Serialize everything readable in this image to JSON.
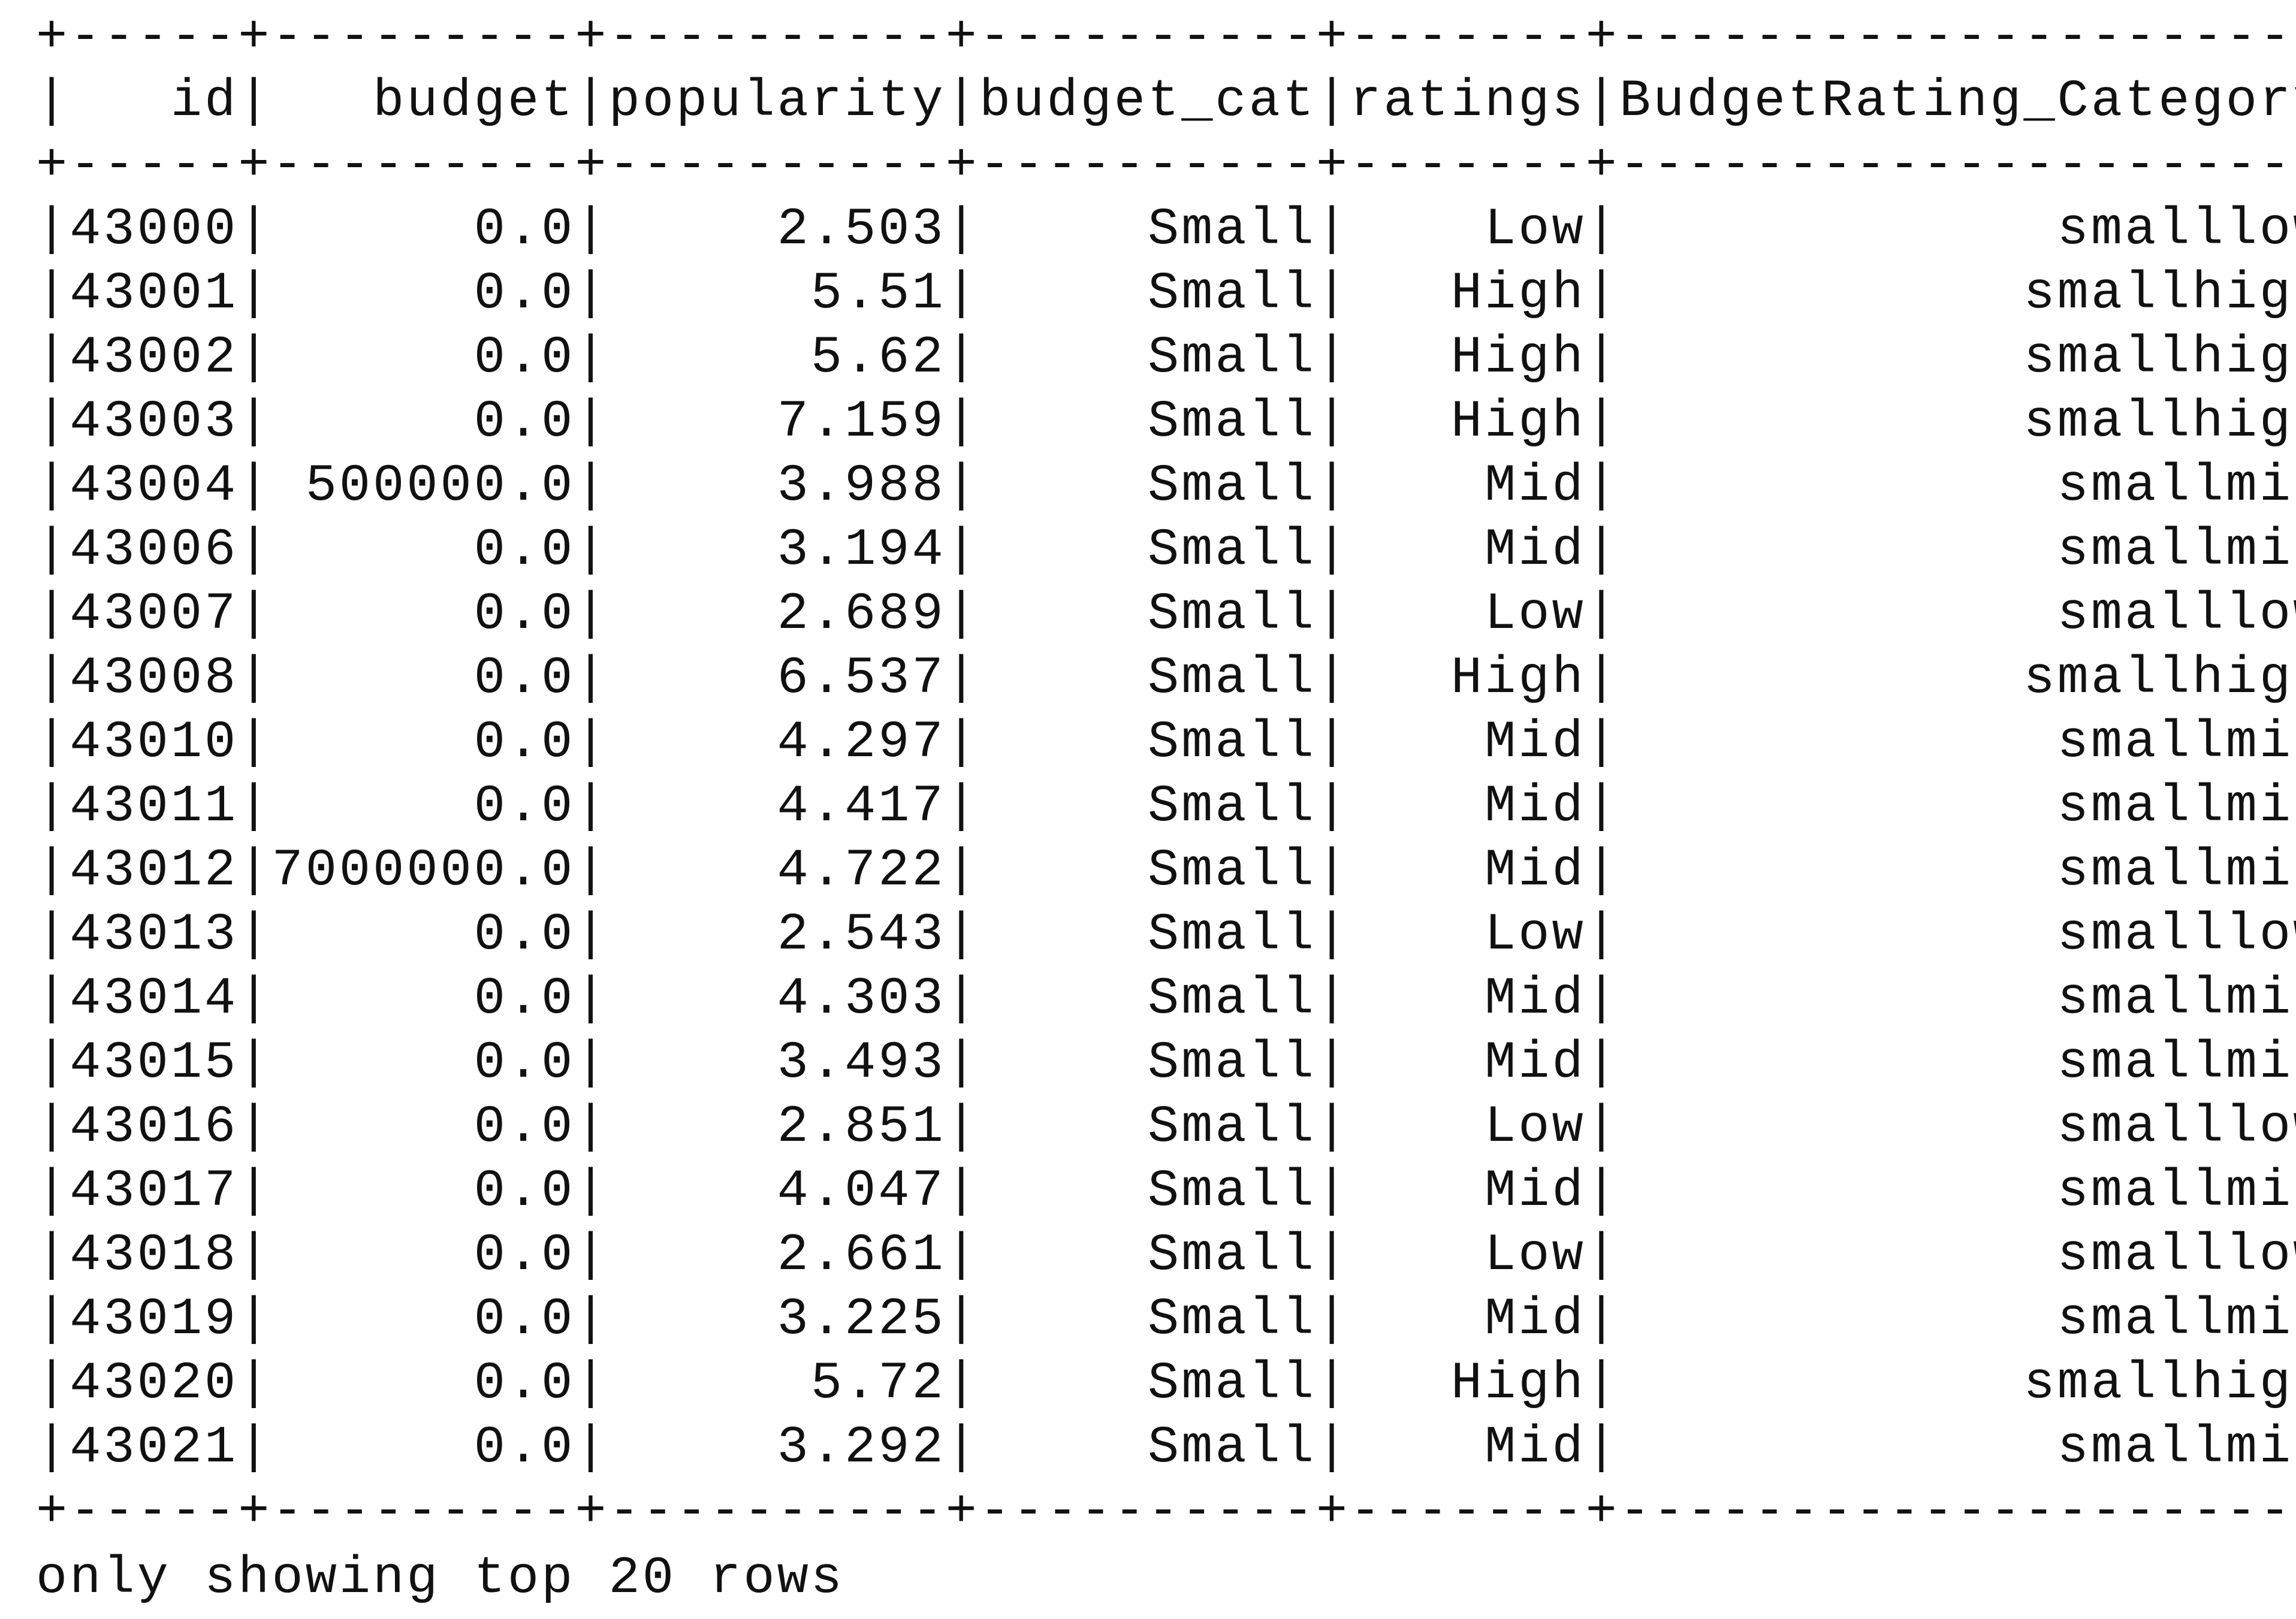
{
  "table": {
    "columns": [
      "id",
      "budget",
      "popularity",
      "budget_cat",
      "ratings",
      "BudgetRating_Category"
    ],
    "rows": [
      [
        "43000",
        "0.0",
        "2.503",
        "Small",
        "Low",
        "smalllow"
      ],
      [
        "43001",
        "0.0",
        "5.51",
        "Small",
        "High",
        "smallhigh"
      ],
      [
        "43002",
        "0.0",
        "5.62",
        "Small",
        "High",
        "smallhigh"
      ],
      [
        "43003",
        "0.0",
        "7.159",
        "Small",
        "High",
        "smallhigh"
      ],
      [
        "43004",
        "500000.0",
        "3.988",
        "Small",
        "Mid",
        "smallmid"
      ],
      [
        "43006",
        "0.0",
        "3.194",
        "Small",
        "Mid",
        "smallmid"
      ],
      [
        "43007",
        "0.0",
        "2.689",
        "Small",
        "Low",
        "smalllow"
      ],
      [
        "43008",
        "0.0",
        "6.537",
        "Small",
        "High",
        "smallhigh"
      ],
      [
        "43010",
        "0.0",
        "4.297",
        "Small",
        "Mid",
        "smallmid"
      ],
      [
        "43011",
        "0.0",
        "4.417",
        "Small",
        "Mid",
        "smallmid"
      ],
      [
        "43012",
        "7000000.0",
        "4.722",
        "Small",
        "Mid",
        "smallmid"
      ],
      [
        "43013",
        "0.0",
        "2.543",
        "Small",
        "Low",
        "smalllow"
      ],
      [
        "43014",
        "0.0",
        "4.303",
        "Small",
        "Mid",
        "smallmid"
      ],
      [
        "43015",
        "0.0",
        "3.493",
        "Small",
        "Mid",
        "smallmid"
      ],
      [
        "43016",
        "0.0",
        "2.851",
        "Small",
        "Low",
        "smalllow"
      ],
      [
        "43017",
        "0.0",
        "4.047",
        "Small",
        "Mid",
        "smallmid"
      ],
      [
        "43018",
        "0.0",
        "2.661",
        "Small",
        "Low",
        "smalllow"
      ],
      [
        "43019",
        "0.0",
        "3.225",
        "Small",
        "Mid",
        "smallmid"
      ],
      [
        "43020",
        "0.0",
        "5.72",
        "Small",
        "High",
        "smallhigh"
      ],
      [
        "43021",
        "0.0",
        "3.292",
        "Small",
        "Mid",
        "smallmid"
      ]
    ]
  },
  "footer": "only showing top 20 rows"
}
